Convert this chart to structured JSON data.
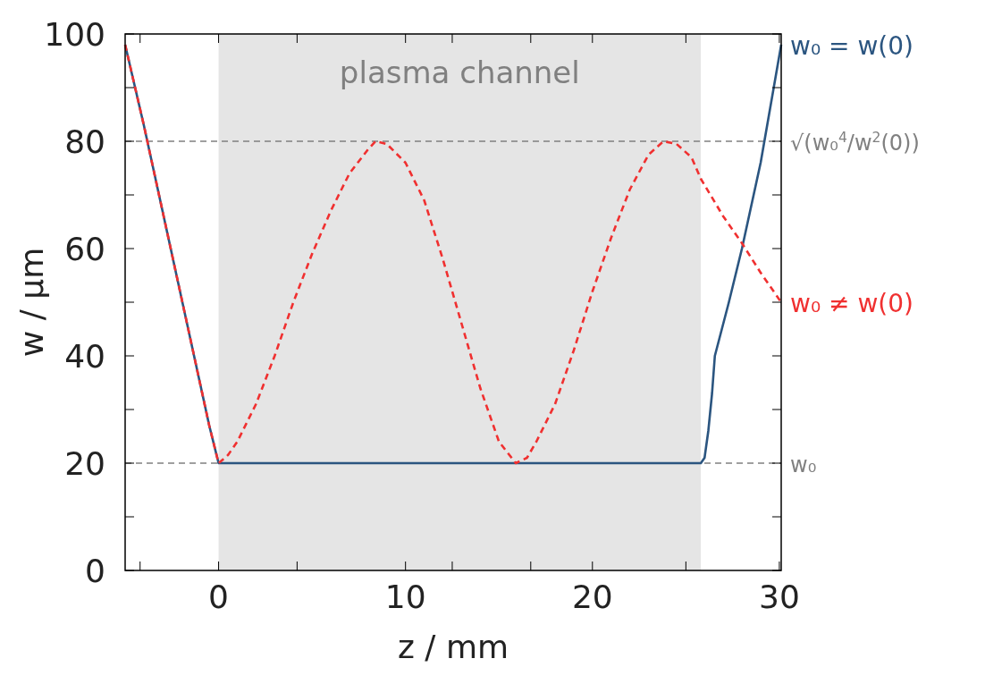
{
  "chart_data": {
    "type": "line",
    "xlabel": "z / mm",
    "ylabel": "w / µm",
    "xlim": [
      -5,
      30.1
    ],
    "xticks": [
      0,
      10,
      20,
      30,
      {
        "value": -4.2,
        "label": null
      },
      {
        "value": 4.2,
        "label": null
      },
      {
        "value": 12.5,
        "label": null
      },
      {
        "value": 16.7,
        "label": null
      },
      {
        "value": 25,
        "label": null
      }
    ],
    "ylim": [
      0,
      100
    ],
    "yticks": [
      0,
      20,
      40,
      60,
      80,
      100,
      {
        "value": 10,
        "label": null
      },
      {
        "value": 30,
        "label": null
      },
      {
        "value": 50,
        "label": null
      },
      {
        "value": 70,
        "label": null
      },
      {
        "value": 90,
        "label": null
      }
    ],
    "grid": false,
    "bands": [
      {
        "axis": "x",
        "from": 0,
        "to": 25.8,
        "label": "plasma channel",
        "color": "#e5e5e5"
      }
    ],
    "ref_lines": [
      {
        "axis": "y",
        "value": 80,
        "label": "√(w₀$^{4}$/w$^{2}$(0))",
        "color": "#808080",
        "line_style": "dashed"
      },
      {
        "axis": "y",
        "value": 20,
        "label": "w₀",
        "color": "#808080",
        "line_style": "dashed"
      }
    ],
    "series": [
      {
        "name": "w₀ = w(0)",
        "color": "#2b5580",
        "line_style": "solid",
        "x": [
          -5,
          -4,
          -3,
          -2,
          -1,
          -0.5,
          0,
          25.8,
          26,
          26.2,
          26.4,
          26.55,
          27.3,
          28,
          29,
          30.1
        ],
        "values": [
          98,
          83,
          67,
          51,
          35,
          27,
          20,
          20,
          21,
          26,
          33,
          40,
          50,
          60,
          76,
          98
        ]
      },
      {
        "name": "w₀ ≠ w(0)",
        "color": "#f03030",
        "line_style": "dashed",
        "x": [
          -5,
          -4,
          -3,
          -2,
          -1,
          -0.5,
          0,
          0.5,
          1,
          2,
          3,
          4,
          5,
          6,
          7,
          8,
          8.4,
          9,
          10,
          11,
          12,
          13,
          14,
          15,
          15.9,
          16.5,
          17,
          18,
          19,
          20,
          21,
          22,
          23,
          23.8,
          24.5,
          25.3,
          25.8,
          27,
          28,
          29,
          30.1
        ],
        "values": [
          98,
          83,
          67,
          51,
          35,
          27,
          20,
          21.5,
          24,
          31,
          40,
          50,
          59,
          67,
          74,
          78.5,
          80,
          79.5,
          76,
          69,
          58,
          46,
          34,
          24,
          20,
          21,
          24,
          31,
          41,
          52,
          62,
          71,
          77.5,
          80,
          79.5,
          77,
          73,
          66,
          61,
          55.5,
          50
        ]
      }
    ]
  }
}
